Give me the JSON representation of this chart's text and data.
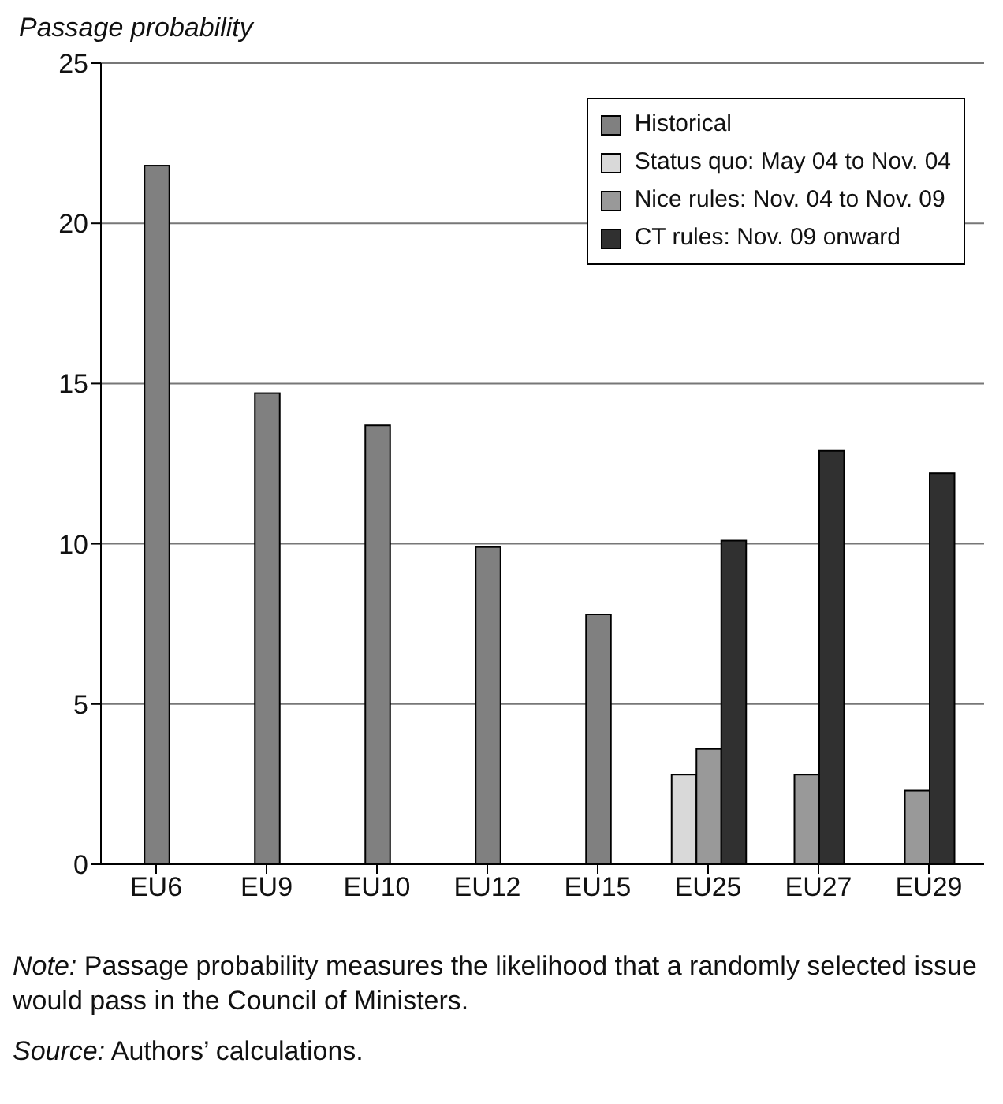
{
  "chart_data": {
    "type": "bar",
    "ylabel": "Passage probability",
    "categories": [
      "EU6",
      "EU9",
      "EU10",
      "EU12",
      "EU15",
      "EU25",
      "EU27",
      "EU29"
    ],
    "series": [
      {
        "name": "Historical",
        "color": "#808080",
        "values": [
          21.8,
          14.7,
          13.7,
          9.9,
          7.8,
          null,
          null,
          null
        ]
      },
      {
        "name": "Status quo: May 04 to Nov. 04",
        "color": "#d9d9d9",
        "values": [
          null,
          null,
          null,
          null,
          null,
          2.8,
          null,
          null
        ]
      },
      {
        "name": "Nice rules: Nov. 04 to Nov. 09",
        "color": "#999999",
        "values": [
          null,
          null,
          null,
          null,
          null,
          3.6,
          2.8,
          2.3
        ]
      },
      {
        "name": "CT rules: Nov. 09 onward",
        "color": "#303030",
        "values": [
          null,
          null,
          null,
          null,
          null,
          10.1,
          12.9,
          12.2
        ]
      }
    ],
    "ylim": [
      0,
      25
    ],
    "yticks": [
      0,
      5,
      10,
      15,
      20,
      25
    ],
    "grid": "y",
    "legend": "top right",
    "annotations": [
      "Note: Passage probability measures the likelihood that a randomly selected issue would pass in the Council of Ministers.",
      "Source: Authors’ calculations."
    ]
  }
}
